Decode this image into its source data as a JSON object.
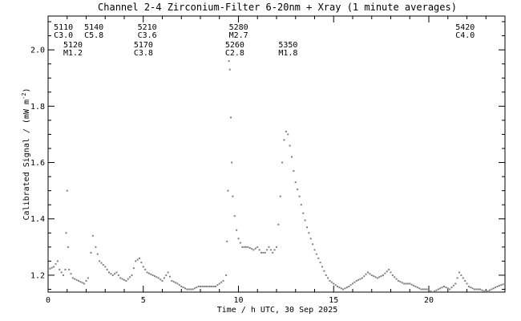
{
  "chart_data": {
    "type": "scatter",
    "title": "Channel 2-4   Zirconium-Filter   6-20nm + Xray   (1 minute averages)",
    "xlabel": "Time / h UTC, 30 Sep 2025",
    "ylabel": "Calibrated Signal / (mW m",
    "ylabel_sup": "-2",
    "ylabel_close": ")",
    "xlim": [
      0,
      24
    ],
    "ylim": [
      1.14,
      2.12
    ],
    "xticks": [
      0,
      5,
      10,
      15,
      20
    ],
    "xtick_labels": [
      "0",
      "5",
      "10",
      "15",
      "20"
    ],
    "yticks": [
      1.2,
      1.4,
      1.6,
      1.8,
      2.0
    ],
    "ytick_labels": [
      "1.2",
      "1.4",
      "1.6",
      "1.8",
      "2.0"
    ],
    "grid": false,
    "marker_color": "#808080",
    "annotations": [
      {
        "x": 0.3,
        "row": 0,
        "id": "5110",
        "cls": "C3.0"
      },
      {
        "x": 0.8,
        "row": 1,
        "id": "5120",
        "cls": "M1.2"
      },
      {
        "x": 1.9,
        "row": 0,
        "id": "5140",
        "cls": "C5.8"
      },
      {
        "x": 4.5,
        "row": 1,
        "id": "5170",
        "cls": "C3.8"
      },
      {
        "x": 4.7,
        "row": 0,
        "id": "5210",
        "cls": "C3.6"
      },
      {
        "x": 9.3,
        "row": 1,
        "id": "5260",
        "cls": "C2.8"
      },
      {
        "x": 9.5,
        "row": 0,
        "id": "5280",
        "cls": "M2.7"
      },
      {
        "x": 12.1,
        "row": 1,
        "id": "5350",
        "cls": "M1.8"
      },
      {
        "x": 21.4,
        "row": 0,
        "id": "5420",
        "cls": "C4.0"
      }
    ],
    "series": [
      {
        "points": [
          [
            0.0,
            1.22
          ],
          [
            0.3,
            1.23
          ],
          [
            0.5,
            1.25
          ],
          [
            0.6,
            1.22
          ],
          [
            0.8,
            1.2
          ],
          [
            0.9,
            1.22
          ],
          [
            0.95,
            1.35
          ],
          [
            1.0,
            1.5
          ],
          [
            1.05,
            1.3
          ],
          [
            1.1,
            1.22
          ],
          [
            1.3,
            1.19
          ],
          [
            1.6,
            1.18
          ],
          [
            1.9,
            1.17
          ],
          [
            2.1,
            1.19
          ],
          [
            2.25,
            1.28
          ],
          [
            2.35,
            1.34
          ],
          [
            2.5,
            1.3
          ],
          [
            2.7,
            1.25
          ],
          [
            3.0,
            1.23
          ],
          [
            3.2,
            1.21
          ],
          [
            3.4,
            1.2
          ],
          [
            3.6,
            1.21
          ],
          [
            3.8,
            1.19
          ],
          [
            4.1,
            1.18
          ],
          [
            4.4,
            1.2
          ],
          [
            4.6,
            1.25
          ],
          [
            4.8,
            1.26
          ],
          [
            5.0,
            1.23
          ],
          [
            5.2,
            1.21
          ],
          [
            5.5,
            1.2
          ],
          [
            5.8,
            1.19
          ],
          [
            6.0,
            1.18
          ],
          [
            6.3,
            1.21
          ],
          [
            6.5,
            1.18
          ],
          [
            6.8,
            1.17
          ],
          [
            7.0,
            1.16
          ],
          [
            7.3,
            1.15
          ],
          [
            7.6,
            1.15
          ],
          [
            7.9,
            1.16
          ],
          [
            8.2,
            1.16
          ],
          [
            8.5,
            1.16
          ],
          [
            8.8,
            1.16
          ],
          [
            9.0,
            1.17
          ],
          [
            9.2,
            1.18
          ],
          [
            9.35,
            1.2
          ],
          [
            9.4,
            1.32
          ],
          [
            9.45,
            1.5
          ],
          [
            9.5,
            1.96
          ],
          [
            9.55,
            1.93
          ],
          [
            9.6,
            1.76
          ],
          [
            9.65,
            1.6
          ],
          [
            9.7,
            1.48
          ],
          [
            9.8,
            1.41
          ],
          [
            9.9,
            1.36
          ],
          [
            10.0,
            1.33
          ],
          [
            10.2,
            1.3
          ],
          [
            10.5,
            1.3
          ],
          [
            10.8,
            1.29
          ],
          [
            11.0,
            1.3
          ],
          [
            11.2,
            1.28
          ],
          [
            11.4,
            1.28
          ],
          [
            11.6,
            1.3
          ],
          [
            11.8,
            1.28
          ],
          [
            12.0,
            1.3
          ],
          [
            12.1,
            1.38
          ],
          [
            12.2,
            1.48
          ],
          [
            12.3,
            1.6
          ],
          [
            12.4,
            1.68
          ],
          [
            12.5,
            1.71
          ],
          [
            12.6,
            1.7
          ],
          [
            12.7,
            1.66
          ],
          [
            12.8,
            1.62
          ],
          [
            12.9,
            1.57
          ],
          [
            13.0,
            1.53
          ],
          [
            13.2,
            1.48
          ],
          [
            13.4,
            1.42
          ],
          [
            13.6,
            1.37
          ],
          [
            13.8,
            1.33
          ],
          [
            14.0,
            1.29
          ],
          [
            14.2,
            1.26
          ],
          [
            14.4,
            1.23
          ],
          [
            14.6,
            1.2
          ],
          [
            14.8,
            1.18
          ],
          [
            15.0,
            1.17
          ],
          [
            15.2,
            1.16
          ],
          [
            15.5,
            1.15
          ],
          [
            15.8,
            1.16
          ],
          [
            16.0,
            1.17
          ],
          [
            16.2,
            1.18
          ],
          [
            16.5,
            1.19
          ],
          [
            16.8,
            1.21
          ],
          [
            17.0,
            1.2
          ],
          [
            17.3,
            1.19
          ],
          [
            17.6,
            1.2
          ],
          [
            17.9,
            1.22
          ],
          [
            18.1,
            1.2
          ],
          [
            18.4,
            1.18
          ],
          [
            18.7,
            1.17
          ],
          [
            19.0,
            1.17
          ],
          [
            19.3,
            1.16
          ],
          [
            19.6,
            1.15
          ],
          [
            19.9,
            1.15
          ],
          [
            20.2,
            1.14
          ],
          [
            20.5,
            1.15
          ],
          [
            20.8,
            1.16
          ],
          [
            21.1,
            1.15
          ],
          [
            21.4,
            1.17
          ],
          [
            21.6,
            1.21
          ],
          [
            21.8,
            1.19
          ],
          [
            22.1,
            1.16
          ],
          [
            22.4,
            1.15
          ],
          [
            22.7,
            1.15
          ],
          [
            23.0,
            1.14
          ],
          [
            23.3,
            1.15
          ],
          [
            23.6,
            1.16
          ],
          [
            24.0,
            1.17
          ]
        ]
      }
    ]
  }
}
